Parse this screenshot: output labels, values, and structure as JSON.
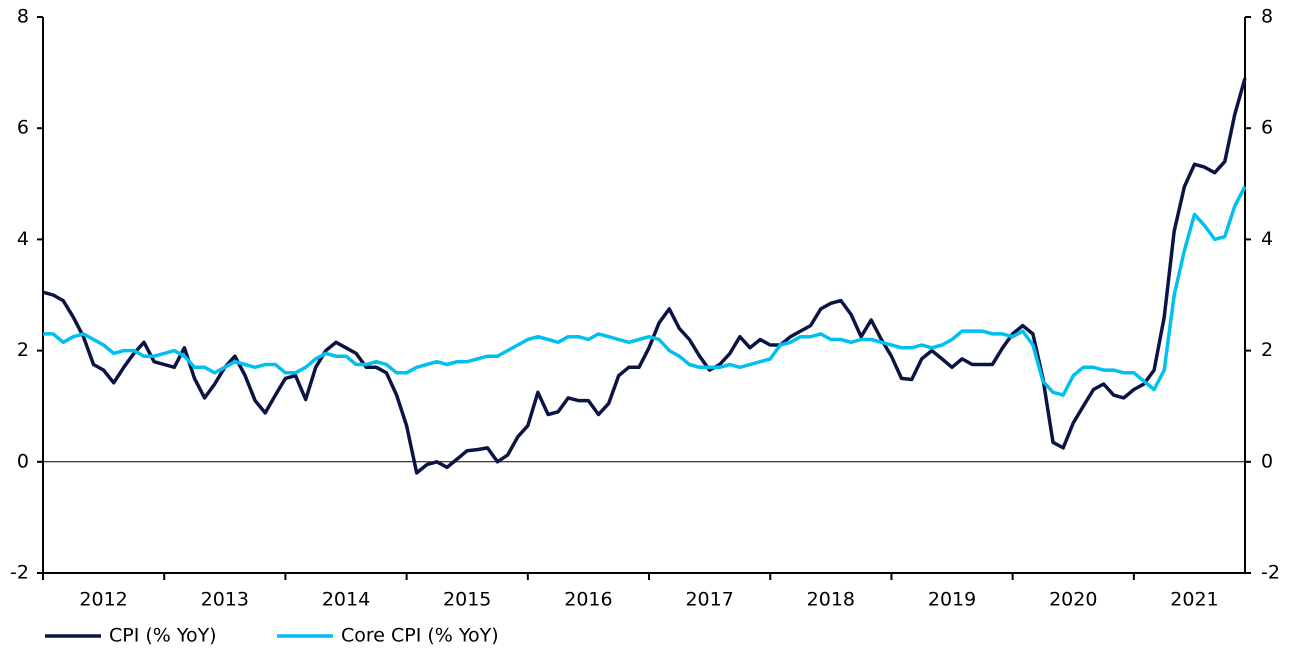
{
  "chart_data": {
    "type": "line",
    "x": [
      2012,
      2012.083,
      2012.167,
      2012.25,
      2012.333,
      2012.417,
      2012.5,
      2012.583,
      2012.667,
      2012.75,
      2012.833,
      2012.917,
      2013,
      2013.083,
      2013.167,
      2013.25,
      2013.333,
      2013.417,
      2013.5,
      2013.583,
      2013.667,
      2013.75,
      2013.833,
      2013.917,
      2014,
      2014.083,
      2014.167,
      2014.25,
      2014.333,
      2014.417,
      2014.5,
      2014.583,
      2014.667,
      2014.75,
      2014.833,
      2014.917,
      2015,
      2015.083,
      2015.167,
      2015.25,
      2015.333,
      2015.417,
      2015.5,
      2015.583,
      2015.667,
      2015.75,
      2015.833,
      2015.917,
      2016,
      2016.083,
      2016.167,
      2016.25,
      2016.333,
      2016.417,
      2016.5,
      2016.583,
      2016.667,
      2016.75,
      2016.833,
      2016.917,
      2017,
      2017.083,
      2017.167,
      2017.25,
      2017.333,
      2017.417,
      2017.5,
      2017.583,
      2017.667,
      2017.75,
      2017.833,
      2017.917,
      2018,
      2018.083,
      2018.167,
      2018.25,
      2018.333,
      2018.417,
      2018.5,
      2018.583,
      2018.667,
      2018.75,
      2018.833,
      2018.917,
      2019,
      2019.083,
      2019.167,
      2019.25,
      2019.333,
      2019.417,
      2019.5,
      2019.583,
      2019.667,
      2019.75,
      2019.833,
      2019.917,
      2020,
      2020.083,
      2020.167,
      2020.25,
      2020.333,
      2020.417,
      2020.5,
      2020.583,
      2020.667,
      2020.75,
      2020.833,
      2020.917,
      2021,
      2021.083,
      2021.167,
      2021.25,
      2021.333,
      2021.417,
      2021.5,
      2021.583,
      2021.667,
      2021.75,
      2021.833,
      2021.917
    ],
    "series": [
      {
        "name": "CPI (% YoY)",
        "color": "#0c1446",
        "values": [
          3.05,
          3.0,
          2.9,
          2.6,
          2.25,
          1.75,
          1.65,
          1.42,
          1.7,
          1.95,
          2.15,
          1.8,
          1.75,
          1.7,
          2.05,
          1.5,
          1.15,
          1.4,
          1.7,
          1.9,
          1.55,
          1.1,
          0.88,
          1.2,
          1.5,
          1.55,
          1.12,
          1.7,
          2.0,
          2.15,
          2.05,
          1.95,
          1.7,
          1.7,
          1.6,
          1.2,
          0.65,
          -0.2,
          -0.05,
          0.0,
          -0.1,
          0.05,
          0.2,
          0.22,
          0.25,
          0.0,
          0.12,
          0.45,
          0.65,
          1.25,
          0.85,
          0.9,
          1.15,
          1.1,
          1.1,
          0.85,
          1.05,
          1.55,
          1.7,
          1.7,
          2.05,
          2.5,
          2.75,
          2.4,
          2.2,
          1.9,
          1.65,
          1.75,
          1.95,
          2.25,
          2.05,
          2.2,
          2.1,
          2.1,
          2.25,
          2.35,
          2.45,
          2.75,
          2.85,
          2.9,
          2.65,
          2.25,
          2.55,
          2.2,
          1.9,
          1.5,
          1.48,
          1.85,
          2.0,
          1.85,
          1.7,
          1.85,
          1.75,
          1.75,
          1.75,
          2.05,
          2.3,
          2.45,
          2.3,
          1.5,
          0.35,
          0.25,
          0.7,
          1.0,
          1.3,
          1.4,
          1.2,
          1.15,
          1.3,
          1.4,
          1.65,
          2.6,
          4.15,
          4.95,
          5.35,
          5.3,
          5.2,
          5.4,
          6.25,
          6.9
        ]
      },
      {
        "name": "Core CPI (% YoY)",
        "color": "#00c0f0",
        "values": [
          2.3,
          2.3,
          2.15,
          2.25,
          2.3,
          2.2,
          2.1,
          1.95,
          2.0,
          2.0,
          1.9,
          1.9,
          1.95,
          2.0,
          1.9,
          1.7,
          1.7,
          1.6,
          1.7,
          1.8,
          1.75,
          1.7,
          1.75,
          1.75,
          1.6,
          1.6,
          1.7,
          1.85,
          1.95,
          1.9,
          1.9,
          1.75,
          1.75,
          1.8,
          1.75,
          1.6,
          1.6,
          1.7,
          1.75,
          1.8,
          1.75,
          1.8,
          1.8,
          1.85,
          1.9,
          1.9,
          2.0,
          2.1,
          2.2,
          2.25,
          2.2,
          2.15,
          2.25,
          2.25,
          2.2,
          2.3,
          2.25,
          2.2,
          2.15,
          2.2,
          2.25,
          2.2,
          2.0,
          1.9,
          1.75,
          1.7,
          1.7,
          1.7,
          1.75,
          1.7,
          1.75,
          1.8,
          1.85,
          2.1,
          2.15,
          2.25,
          2.25,
          2.3,
          2.2,
          2.2,
          2.15,
          2.2,
          2.2,
          2.15,
          2.1,
          2.05,
          2.05,
          2.1,
          2.05,
          2.1,
          2.2,
          2.35,
          2.35,
          2.35,
          2.3,
          2.3,
          2.25,
          2.35,
          2.1,
          1.45,
          1.25,
          1.2,
          1.55,
          1.7,
          1.7,
          1.65,
          1.65,
          1.6,
          1.6,
          1.45,
          1.3,
          1.65,
          3.0,
          3.8,
          4.45,
          4.25,
          4.0,
          4.05,
          4.6,
          4.95
        ]
      }
    ],
    "xlim": [
      2012,
      2021.917
    ],
    "xticks": [
      {
        "value": 2012.5,
        "label": "2012"
      },
      {
        "value": 2013.5,
        "label": "2013"
      },
      {
        "value": 2014.5,
        "label": "2014"
      },
      {
        "value": 2015.5,
        "label": "2015"
      },
      {
        "value": 2016.5,
        "label": "2016"
      },
      {
        "value": 2017.5,
        "label": "2017"
      },
      {
        "value": 2018.5,
        "label": "2018"
      },
      {
        "value": 2019.5,
        "label": "2019"
      },
      {
        "value": 2020.5,
        "label": "2020"
      },
      {
        "value": 2021.5,
        "label": "2021"
      }
    ],
    "ylim": [
      -2,
      8
    ],
    "yticks": [
      -2,
      0,
      2,
      4,
      6,
      8
    ],
    "y2lim": [
      -2,
      8
    ],
    "y2ticks": [
      -2,
      0,
      2,
      4,
      6,
      8
    ],
    "legend": "bottom-left"
  }
}
